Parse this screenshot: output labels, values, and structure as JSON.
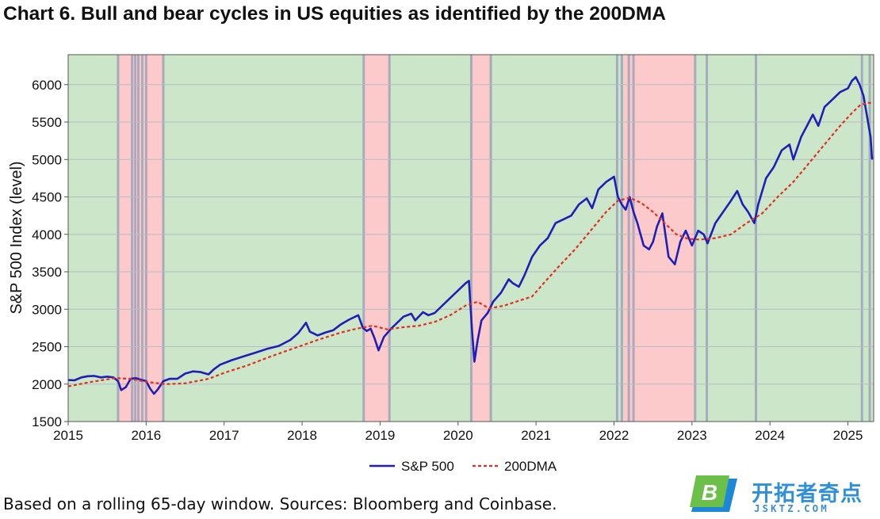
{
  "chart_data": {
    "type": "line",
    "title": "Chart 6. Bull and bear cycles in US equities as identified by the 200DMA",
    "ylabel": "S&P 500 Index (level)",
    "xlabel": "",
    "xlim": [
      2015.0,
      2025.33
    ],
    "ylim": [
      1500,
      6400
    ],
    "y_ticks": [
      1500,
      2000,
      2500,
      3000,
      3500,
      4000,
      4500,
      5000,
      5500,
      6000
    ],
    "x_ticks": [
      2015,
      2016,
      2017,
      2018,
      2019,
      2020,
      2021,
      2022,
      2023,
      2024,
      2025
    ],
    "x_tick_labels": [
      "2015",
      "2016",
      "2017",
      "2018",
      "2019",
      "2020",
      "2021",
      "2022",
      "2023",
      "2024",
      "2025"
    ],
    "grid": "horizontal",
    "legend_position": "bottom-center",
    "regime_colors": {
      "bull": "#cbe6c8",
      "bear": "#fccaca"
    },
    "bear_periods": [
      [
        2015.64,
        2016.22
      ],
      [
        2018.79,
        2019.12
      ],
      [
        2020.17,
        2020.42
      ],
      [
        2022.12,
        2023.04
      ]
    ],
    "switch_lines": [
      2015.64,
      2015.82,
      2015.86,
      2015.9,
      2015.95,
      2016.0,
      2016.22,
      2018.79,
      2019.12,
      2020.17,
      2020.42,
      2022.04,
      2022.1,
      2022.19,
      2022.25,
      2023.04,
      2023.19,
      2023.82,
      2025.18,
      2025.28
    ],
    "series": [
      {
        "name": "S&P 500",
        "color": "#1f1fb8",
        "style": "solid",
        "x": [
          2015.0,
          2015.08,
          2015.17,
          2015.25,
          2015.33,
          2015.42,
          2015.5,
          2015.58,
          2015.64,
          2015.68,
          2015.74,
          2015.8,
          2015.87,
          2015.93,
          2016.0,
          2016.05,
          2016.1,
          2016.15,
          2016.22,
          2016.3,
          2016.4,
          2016.5,
          2016.6,
          2016.7,
          2016.8,
          2016.87,
          2016.95,
          2017.1,
          2017.25,
          2017.4,
          2017.55,
          2017.7,
          2017.85,
          2017.95,
          2018.05,
          2018.1,
          2018.2,
          2018.3,
          2018.4,
          2018.5,
          2018.6,
          2018.72,
          2018.78,
          2018.83,
          2018.88,
          2018.93,
          2018.98,
          2019.05,
          2019.15,
          2019.3,
          2019.4,
          2019.45,
          2019.55,
          2019.62,
          2019.7,
          2019.8,
          2019.9,
          2020.0,
          2020.1,
          2020.14,
          2020.18,
          2020.21,
          2020.25,
          2020.3,
          2020.38,
          2020.45,
          2020.55,
          2020.65,
          2020.7,
          2020.78,
          2020.85,
          2020.95,
          2021.05,
          2021.15,
          2021.25,
          2021.35,
          2021.45,
          2021.55,
          2021.65,
          2021.72,
          2021.8,
          2021.9,
          2022.0,
          2022.05,
          2022.1,
          2022.15,
          2022.2,
          2022.25,
          2022.3,
          2022.38,
          2022.45,
          2022.5,
          2022.55,
          2022.62,
          2022.7,
          2022.78,
          2022.85,
          2022.92,
          2023.0,
          2023.08,
          2023.15,
          2023.2,
          2023.3,
          2023.4,
          2023.5,
          2023.58,
          2023.65,
          2023.72,
          2023.8,
          2023.85,
          2023.95,
          2024.05,
          2024.15,
          2024.25,
          2024.3,
          2024.4,
          2024.5,
          2024.55,
          2024.62,
          2024.7,
          2024.8,
          2024.9,
          2025.0,
          2025.05,
          2025.1,
          2025.15,
          2025.2,
          2025.25,
          2025.29,
          2025.31
        ],
        "y": [
          2055,
          2050,
          2090,
          2105,
          2110,
          2090,
          2100,
          2090,
          2040,
          1920,
          1960,
          2070,
          2080,
          2060,
          2040,
          1940,
          1870,
          1930,
          2040,
          2070,
          2070,
          2140,
          2170,
          2160,
          2130,
          2200,
          2260,
          2320,
          2370,
          2420,
          2470,
          2510,
          2590,
          2680,
          2820,
          2700,
          2650,
          2690,
          2720,
          2800,
          2860,
          2920,
          2750,
          2710,
          2740,
          2610,
          2450,
          2630,
          2750,
          2900,
          2940,
          2850,
          2960,
          2920,
          2950,
          3050,
          3150,
          3250,
          3350,
          3380,
          2700,
          2300,
          2580,
          2850,
          2950,
          3100,
          3220,
          3400,
          3350,
          3300,
          3450,
          3700,
          3850,
          3950,
          4150,
          4200,
          4250,
          4400,
          4480,
          4350,
          4600,
          4700,
          4770,
          4500,
          4400,
          4330,
          4500,
          4300,
          4150,
          3850,
          3800,
          3900,
          4100,
          4280,
          3700,
          3600,
          3900,
          4050,
          3850,
          4050,
          4000,
          3880,
          4150,
          4300,
          4450,
          4580,
          4400,
          4300,
          4150,
          4400,
          4750,
          4900,
          5120,
          5200,
          5000,
          5300,
          5500,
          5600,
          5450,
          5700,
          5800,
          5900,
          5950,
          6050,
          6100,
          6000,
          5850,
          5550,
          5300,
          5000
        ]
      },
      {
        "name": "200DMA",
        "color": "#e03020",
        "style": "dotted",
        "x": [
          2015.0,
          2015.3,
          2015.6,
          2015.8,
          2016.0,
          2016.25,
          2016.5,
          2016.8,
          2017.0,
          2017.3,
          2017.6,
          2017.9,
          2018.2,
          2018.5,
          2018.7,
          2018.9,
          2019.1,
          2019.3,
          2019.5,
          2019.7,
          2019.9,
          2020.1,
          2020.25,
          2020.4,
          2020.6,
          2020.8,
          2020.95,
          2021.1,
          2021.3,
          2021.5,
          2021.7,
          2021.9,
          2022.05,
          2022.2,
          2022.35,
          2022.5,
          2022.65,
          2022.8,
          2022.95,
          2023.1,
          2023.3,
          2023.5,
          2023.7,
          2023.9,
          2024.1,
          2024.3,
          2024.5,
          2024.7,
          2024.9,
          2025.05,
          2025.15,
          2025.25,
          2025.31
        ],
        "y": [
          1970,
          2030,
          2080,
          2070,
          2030,
          2000,
          2010,
          2070,
          2150,
          2250,
          2370,
          2480,
          2590,
          2690,
          2740,
          2780,
          2730,
          2760,
          2780,
          2830,
          2920,
          3050,
          3100,
          3010,
          3050,
          3120,
          3170,
          3350,
          3580,
          3800,
          4050,
          4300,
          4450,
          4490,
          4420,
          4300,
          4150,
          4000,
          3940,
          3930,
          3950,
          4000,
          4150,
          4280,
          4500,
          4700,
          4950,
          5200,
          5450,
          5620,
          5720,
          5760,
          5750
        ]
      }
    ]
  },
  "footnote": "Based on a rolling 65-day window. Sources: Bloomberg and Coinbase.",
  "logo": {
    "badge_letter": "B",
    "brand_cn": "开拓者奇点",
    "brand_en": "JSKTZ.COM",
    "badge_green": "#6cc04a",
    "badge_blue": "#1e88d8"
  }
}
